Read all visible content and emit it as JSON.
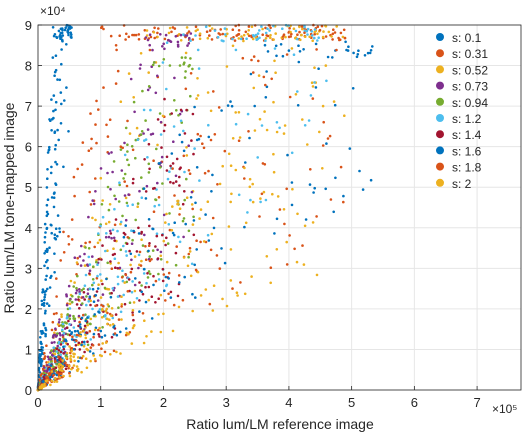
{
  "chart_data": {
    "type": "scatter",
    "xlabel": "Ratio lum/LM reference image",
    "ylabel": "Ratio lum/LM tone-mapped image",
    "x_multiplier": "×10⁵",
    "y_multiplier": "×10⁴",
    "xlim": [
      0,
      7.7
    ],
    "ylim": [
      0,
      9
    ],
    "x_ticks": [
      "0",
      "1",
      "2",
      "3",
      "4",
      "5",
      "6",
      "7"
    ],
    "y_ticks": [
      "0",
      "1",
      "2",
      "3",
      "4",
      "5",
      "6",
      "7",
      "8",
      "9"
    ],
    "x_unit_scale": 100000,
    "y_unit_scale": 10000,
    "grid": true,
    "legend_position": "top-right",
    "series": [
      {
        "name": "s: 0.1",
        "color": "#0072BD",
        "slope": 24.0,
        "ymax_raw": 90000,
        "xmax": 0.55
      },
      {
        "name": "s: 0.31",
        "color": "#D95319",
        "slope": 6.2,
        "ymax_raw": 90000,
        "xmax": 4.9
      },
      {
        "name": "s: 0.52",
        "color": "#EDB120",
        "slope": 3.5,
        "ymax_raw": 90000,
        "xmax": 4.9
      },
      {
        "name": "s: 0.73",
        "color": "#7E2F8E",
        "slope": 3.6,
        "ymax_raw": 88000,
        "xmax": 2.5
      },
      {
        "name": "s: 0.94",
        "color": "#77AC30",
        "slope": 3.0,
        "ymax_raw": 82000,
        "xmax": 2.5
      },
      {
        "name": "s: 1.2",
        "color": "#4DBEEE",
        "slope": 2.7,
        "ymax_raw": 90000,
        "xmax": 4.6
      },
      {
        "name": "s: 1.4",
        "color": "#A2142F",
        "slope": 2.3,
        "ymax_raw": 82000,
        "xmax": 2.5
      },
      {
        "name": "s: 1.6",
        "color": "#0072BD",
        "slope": 1.9,
        "ymax_raw": 86000,
        "xmax": 5.35
      },
      {
        "name": "s: 1.8",
        "color": "#D95319",
        "slope": 1.7,
        "ymax_raw": 90000,
        "xmax": 4.9
      },
      {
        "name": "s: 2",
        "color": "#EDB120",
        "slope": 1.4,
        "ymax_raw": 90000,
        "xmax": 4.9
      }
    ]
  }
}
